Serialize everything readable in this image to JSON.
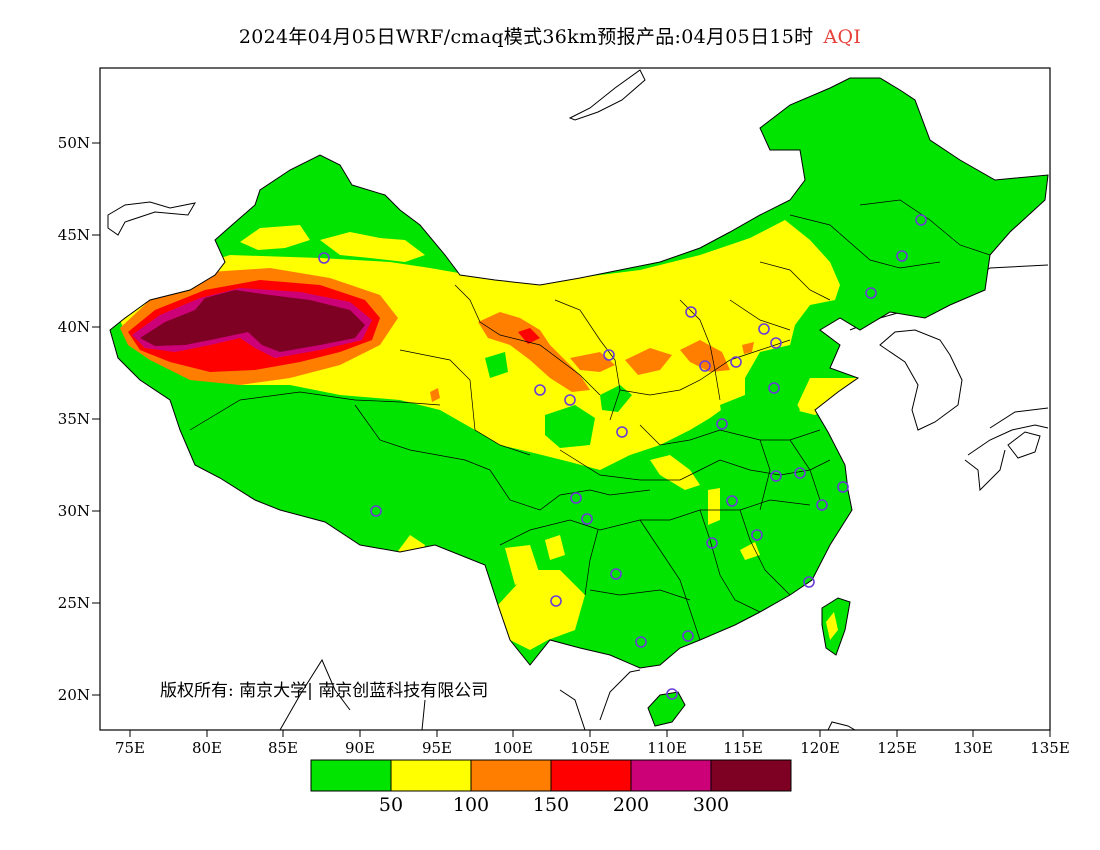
{
  "title": {
    "main": "2024年04月05日WRF/cmaq模式36km预报产品:04月05日15时",
    "variable": "AQI"
  },
  "axes": {
    "y_ticks": [
      "50N",
      "45N",
      "40N",
      "35N",
      "30N",
      "25N",
      "20N"
    ],
    "x_ticks": [
      "75E",
      "80E",
      "85E",
      "90E",
      "95E",
      "100E",
      "105E",
      "110E",
      "115E",
      "120E",
      "125E",
      "130E",
      "135E"
    ]
  },
  "colors": {
    "good": "#00e400",
    "moderate": "#ffff00",
    "usg": "#ff7e00",
    "unhealthy": "#ff0000",
    "very_unhealthy": "#cc0077",
    "hazardous": "#7e0023",
    "station_ring": "#6a3dd6"
  },
  "legend": {
    "labels": [
      "50",
      "100",
      "150",
      "200",
      "300"
    ]
  },
  "copyright": "版权所有: 南京大学| 南京创蓝科技有限公司"
}
